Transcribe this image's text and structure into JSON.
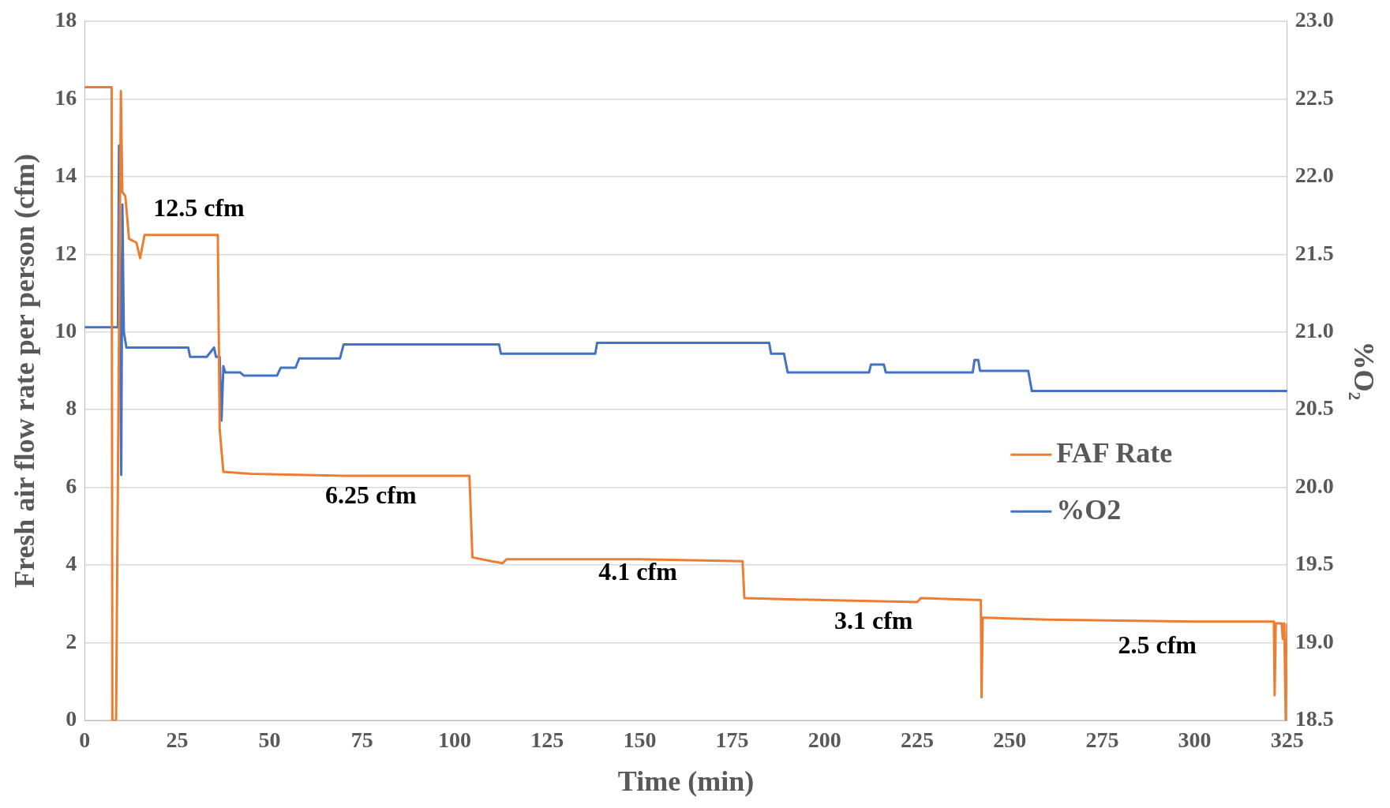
{
  "chart_data": {
    "type": "line",
    "xlabel": "Time (min)",
    "ylabel": "Fresh air flow rate per person (cfm)",
    "y2label": "%O₂",
    "xlim": [
      0,
      325
    ],
    "xticks": [
      0,
      25,
      50,
      75,
      100,
      125,
      150,
      175,
      200,
      225,
      250,
      275,
      300,
      325
    ],
    "ylim": [
      0,
      18
    ],
    "yticks": [
      0,
      2,
      4,
      6,
      8,
      10,
      12,
      14,
      16,
      18
    ],
    "y2lim": [
      18.5,
      23
    ],
    "y2ticks": [
      {
        "value": 18.5,
        "label": "18.5"
      },
      {
        "value": 19,
        "label": "19.0"
      },
      {
        "value": 19.5,
        "label": "19.5"
      },
      {
        "value": 20,
        "label": "20.0"
      },
      {
        "value": 20.5,
        "label": "20.5"
      },
      {
        "value": 21,
        "label": "21.0"
      },
      {
        "value": 21.5,
        "label": "21.5"
      },
      {
        "value": 22,
        "label": "22.0"
      },
      {
        "value": 22.5,
        "label": "22.5"
      },
      {
        "value": 23,
        "label": "23.0"
      }
    ],
    "grid": "y",
    "legend": "right",
    "marker": "none",
    "line_style": "solid",
    "series": [
      {
        "name": "FAF Rate",
        "color": "#ed7d31",
        "x": [
          0,
          7.3,
          7.5,
          8.5,
          9.8,
          10.2,
          11,
          12,
          14,
          15,
          16.2,
          25,
          36,
          36.5,
          37.5,
          45,
          70,
          104,
          104.8,
          110,
          113,
          114,
          150,
          177.8,
          178.3,
          200,
          225,
          226,
          242.2,
          242.4,
          242.7,
          260,
          300,
          321.4,
          321.6,
          321.9,
          323.5,
          323.8,
          324.2,
          324.6,
          325
        ],
        "values": [
          16.3,
          16.3,
          0,
          0,
          16.2,
          13.6,
          13.5,
          12.4,
          12.3,
          11.9,
          12.5,
          12.5,
          12.5,
          7.5,
          6.4,
          6.35,
          6.3,
          6.3,
          4.2,
          4.1,
          4.05,
          4.15,
          4.15,
          4.1,
          3.15,
          3.1,
          3.05,
          3.15,
          3.1,
          0.6,
          2.65,
          2.6,
          2.55,
          2.55,
          0.65,
          2.5,
          2.5,
          2.1,
          2.5,
          0,
          2.5
        ]
      },
      {
        "name": "%O2",
        "color": "#4472c4",
        "axis": "y2",
        "x": [
          0,
          9,
          9.3,
          9.6,
          9.9,
          10.2,
          10.6,
          11.3,
          28,
          28.5,
          33,
          35,
          35.5,
          36.5,
          37,
          37.5,
          38,
          42,
          43,
          52,
          53,
          57,
          58,
          69,
          70,
          112,
          112.5,
          138,
          138.5,
          185,
          185.5,
          189,
          190,
          212,
          212.5,
          216,
          216.5,
          240,
          240.5,
          241.5,
          242,
          255,
          256,
          325
        ],
        "values": [
          21.03,
          21.03,
          22.2,
          21.03,
          20.08,
          21.82,
          21.0,
          20.9,
          20.9,
          20.84,
          20.84,
          20.9,
          20.84,
          20.84,
          20.43,
          20.78,
          20.74,
          20.74,
          20.72,
          20.72,
          20.77,
          20.77,
          20.83,
          20.83,
          20.92,
          20.92,
          20.86,
          20.86,
          20.93,
          20.93,
          20.86,
          20.86,
          20.74,
          20.74,
          20.79,
          20.79,
          20.74,
          20.74,
          20.82,
          20.82,
          20.75,
          20.75,
          20.62,
          20.62
        ]
      }
    ],
    "annotations": [
      "12.5 cfm",
      "6.25 cfm",
      "4.1 cfm",
      "3.1 cfm",
      "2.5 cfm"
    ]
  }
}
